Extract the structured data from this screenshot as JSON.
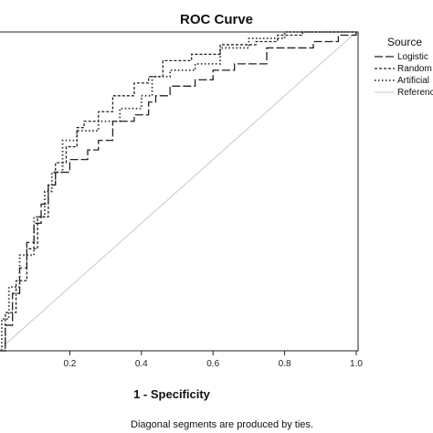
{
  "chart_data": {
    "type": "line",
    "title": "ROC Curve",
    "xlabel": "1 - Specificity",
    "ylabel": "",
    "xlim": [
      0,
      1
    ],
    "ylim": [
      0,
      1
    ],
    "x_ticks": [
      "0.2",
      "0.4",
      "0.6",
      "0.8",
      "1.0"
    ],
    "x_tick_values": [
      0.2,
      0.4,
      0.6,
      0.8,
      1.0
    ],
    "footnote": "Diagonal segments are produced by ties.",
    "legend": {
      "title": "Source",
      "placement": "right"
    },
    "series": [
      {
        "name": "Logistic",
        "style": "long-dash",
        "color": "#222222",
        "points": [
          [
            0,
            0
          ],
          [
            0.02,
            0.08
          ],
          [
            0.04,
            0.18
          ],
          [
            0.06,
            0.26
          ],
          [
            0.08,
            0.34
          ],
          [
            0.1,
            0.4
          ],
          [
            0.12,
            0.46
          ],
          [
            0.14,
            0.52
          ],
          [
            0.16,
            0.56
          ],
          [
            0.2,
            0.6
          ],
          [
            0.25,
            0.63
          ],
          [
            0.28,
            0.66
          ],
          [
            0.32,
            0.72
          ],
          [
            0.36,
            0.72
          ],
          [
            0.38,
            0.74
          ],
          [
            0.42,
            0.78
          ],
          [
            0.44,
            0.8
          ],
          [
            0.48,
            0.83
          ],
          [
            0.55,
            0.85
          ],
          [
            0.6,
            0.88
          ],
          [
            0.66,
            0.9
          ],
          [
            0.75,
            0.95
          ],
          [
            0.82,
            0.95
          ],
          [
            0.88,
            0.97
          ],
          [
            0.95,
            0.99
          ],
          [
            1.0,
            1.0
          ]
        ]
      },
      {
        "name": "Random",
        "style": "short-dash",
        "color": "#222222",
        "points": [
          [
            0,
            0
          ],
          [
            0.02,
            0.12
          ],
          [
            0.05,
            0.22
          ],
          [
            0.08,
            0.32
          ],
          [
            0.11,
            0.42
          ],
          [
            0.14,
            0.52
          ],
          [
            0.16,
            0.59
          ],
          [
            0.19,
            0.64
          ],
          [
            0.22,
            0.7
          ],
          [
            0.24,
            0.72
          ],
          [
            0.28,
            0.75
          ],
          [
            0.32,
            0.8
          ],
          [
            0.38,
            0.84
          ],
          [
            0.42,
            0.86
          ],
          [
            0.46,
            0.91
          ],
          [
            0.54,
            0.93
          ],
          [
            0.62,
            0.96
          ],
          [
            0.72,
            0.97
          ],
          [
            0.78,
            0.99
          ],
          [
            0.85,
            1.0
          ],
          [
            1.0,
            1.0
          ]
        ]
      },
      {
        "name": "Artificial",
        "style": "dotted",
        "color": "#333333",
        "points": [
          [
            0,
            0
          ],
          [
            0.01,
            0.1
          ],
          [
            0.03,
            0.2
          ],
          [
            0.06,
            0.3
          ],
          [
            0.1,
            0.42
          ],
          [
            0.13,
            0.5
          ],
          [
            0.15,
            0.56
          ],
          [
            0.18,
            0.66
          ],
          [
            0.22,
            0.69
          ],
          [
            0.28,
            0.72
          ],
          [
            0.34,
            0.76
          ],
          [
            0.4,
            0.8
          ],
          [
            0.43,
            0.86
          ],
          [
            0.48,
            0.88
          ],
          [
            0.55,
            0.9
          ],
          [
            0.62,
            0.95
          ],
          [
            0.7,
            0.98
          ],
          [
            0.8,
            1.0
          ],
          [
            1.0,
            1.0
          ]
        ]
      },
      {
        "name": "Reference",
        "style": "solid-light",
        "color": "#c8c8c8",
        "points": [
          [
            0,
            0
          ],
          [
            1,
            1
          ]
        ]
      }
    ]
  }
}
